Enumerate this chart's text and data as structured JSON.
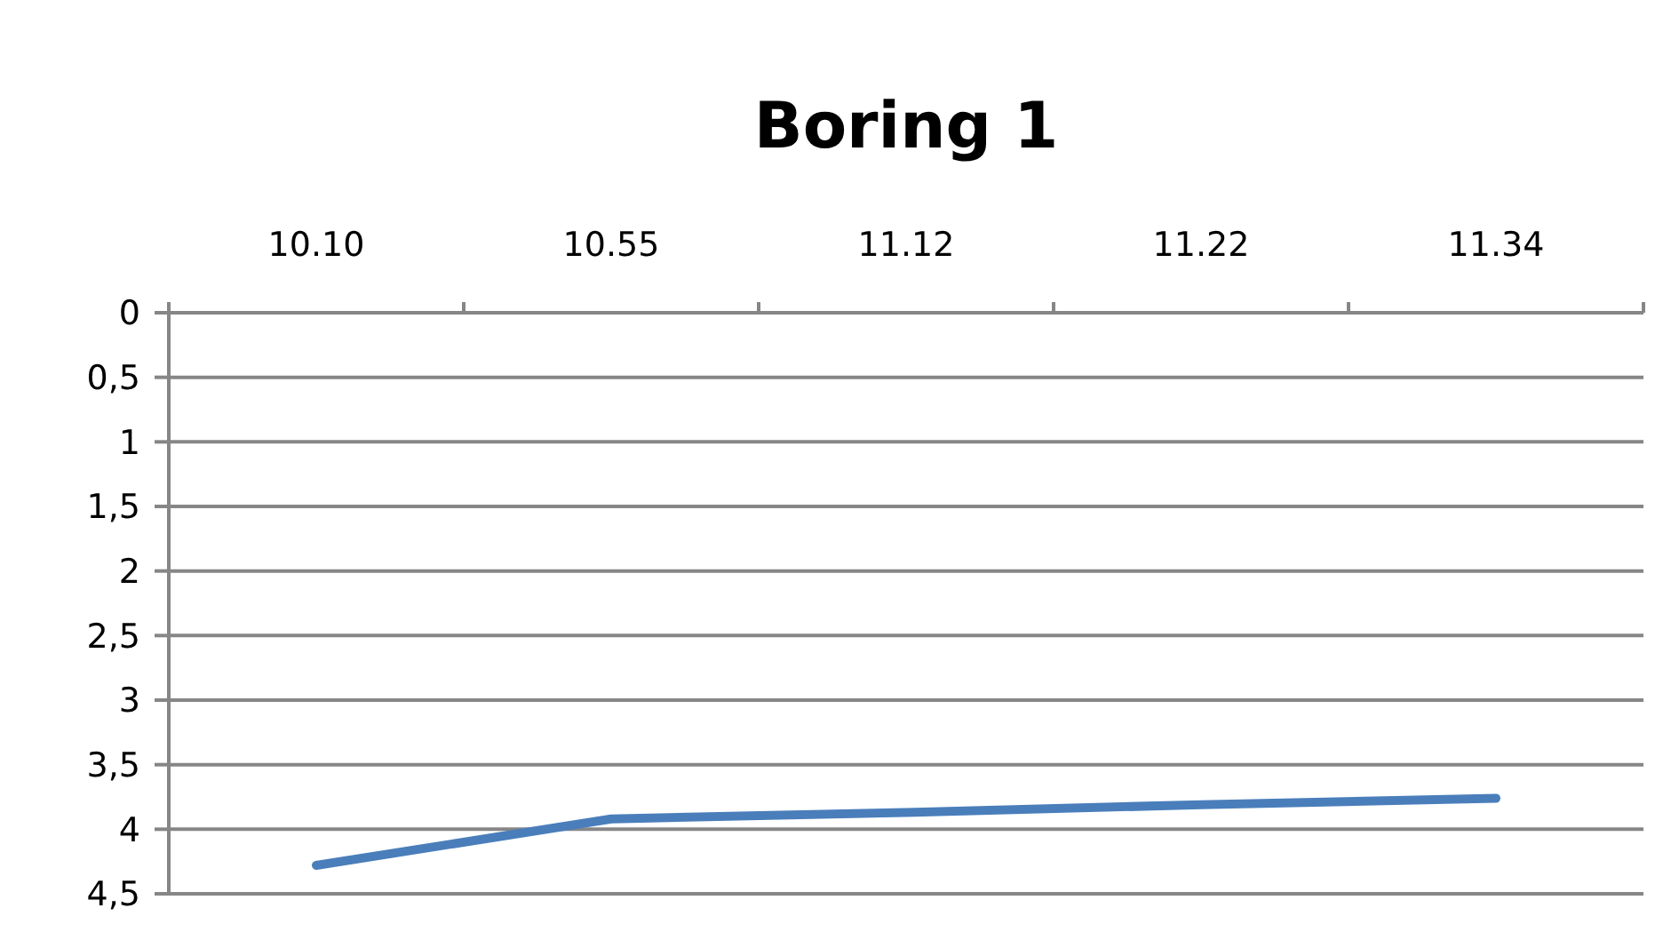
{
  "chart_data": {
    "type": "line",
    "title": "Boring 1",
    "categories": [
      "10.10",
      "10.55",
      "11.12",
      "11.22",
      "11.34"
    ],
    "series": [
      {
        "color": "#4a7ebb",
        "values": [
          4.28,
          3.92,
          3.87,
          3.81,
          3.76
        ]
      }
    ],
    "ylim": [
      4.5,
      0
    ],
    "yticks": [
      {
        "value": 0,
        "label": "0"
      },
      {
        "value": 0.5,
        "label": "0,5"
      },
      {
        "value": 1,
        "label": "1"
      },
      {
        "value": 1.5,
        "label": "1,5"
      },
      {
        "value": 2,
        "label": "2"
      },
      {
        "value": 2.5,
        "label": "2,5"
      },
      {
        "value": 3,
        "label": "3"
      },
      {
        "value": 3.5,
        "label": "3,5"
      },
      {
        "value": 4,
        "label": "4"
      },
      {
        "value": 4.5,
        "label": "4,5"
      }
    ],
    "grid": "y",
    "marker": "none",
    "line_style": "solid"
  }
}
